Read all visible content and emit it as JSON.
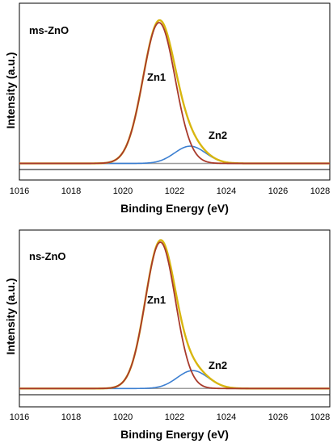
{
  "chart_data": [
    {
      "type": "line",
      "panel_label": "ms-ZnO",
      "xlabel": "Binding Energy (eV)",
      "ylabel": "Intensity (a.u.)",
      "xlim": [
        1016,
        1028
      ],
      "x_ticks": [
        "1016",
        "1018",
        "1020",
        "1022",
        "1024",
        "1026",
        "1028"
      ],
      "y_ticks_shown": false,
      "grid": false,
      "annotations": [
        {
          "text": "Zn1",
          "x": 1021.3,
          "y": 0.55
        },
        {
          "text": "Zn2",
          "x": 1023.6,
          "y": 0.2
        }
      ],
      "peaks": {
        "baseline": 0.02,
        "zn1_center": 1021.4,
        "zn1_height": 0.98,
        "zn1_sigma": 0.62,
        "zn2_center": 1022.6,
        "zn2_height": 0.12,
        "zn2_sigma": 0.6
      },
      "series": [
        {
          "key": "background",
          "color": "#9e9e9e"
        },
        {
          "key": "zn2",
          "color": "#3c7fd1"
        },
        {
          "key": "envelope",
          "color": "#d8b60f"
        },
        {
          "key": "zn1",
          "color": "#a83a2b"
        }
      ]
    },
    {
      "type": "line",
      "panel_label": "ns-ZnO",
      "xlabel": "Binding Energy (eV)",
      "ylabel": "Intensity (a.u.)",
      "xlim": [
        1016,
        1028
      ],
      "x_ticks": [
        "1016",
        "1018",
        "1020",
        "1022",
        "1024",
        "1026",
        "1028"
      ],
      "y_ticks_shown": false,
      "grid": false,
      "annotations": [
        {
          "text": "Zn1",
          "x": 1021.3,
          "y": 0.55
        },
        {
          "text": "Zn2",
          "x": 1023.6,
          "y": 0.2
        }
      ],
      "peaks": {
        "baseline": 0.02,
        "zn1_center": 1021.45,
        "zn1_height": 0.98,
        "zn1_sigma": 0.58,
        "zn2_center": 1022.7,
        "zn2_height": 0.12,
        "zn2_sigma": 0.6
      },
      "series": [
        {
          "key": "background",
          "color": "#9e9e9e"
        },
        {
          "key": "zn2",
          "color": "#3c7fd1"
        },
        {
          "key": "envelope",
          "color": "#d8b60f"
        },
        {
          "key": "zn1",
          "color": "#a83a2b"
        }
      ]
    }
  ]
}
